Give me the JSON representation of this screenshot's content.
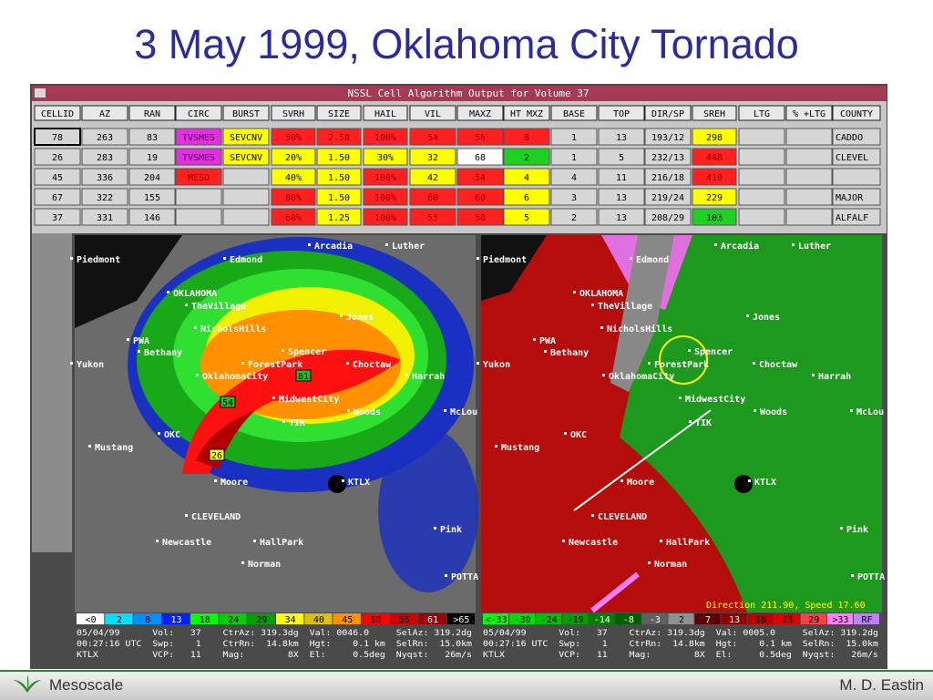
{
  "slide": {
    "title": "3 May 1999, Oklahoma City Tornado",
    "footer_left": "Mesoscale",
    "footer_right": "M. D. Eastin"
  },
  "window": {
    "title": "NSSL Cell Algorithm Output for Volume 37"
  },
  "table": {
    "columns": [
      "CELLID",
      "AZ",
      "RAN",
      "CIRC",
      "BURST",
      "SVRH",
      "SIZE",
      "HAIL",
      "VIL",
      "MAXZ",
      "HT MXZ",
      "BASE",
      "TOP",
      "DIR/SP",
      "SREH",
      "LTG",
      "% +LTG",
      "COUNTY"
    ],
    "rows": [
      [
        "78",
        "263",
        "83",
        "TVSMES",
        "SEVCNV",
        "50%",
        "2.50",
        "100%",
        "54",
        "56",
        "8",
        "1",
        "13",
        "193/12",
        "298",
        null,
        null,
        "CADDO"
      ],
      [
        "26",
        "283",
        "19",
        "TVSMES",
        "SEVCNV",
        "20%",
        "1.50",
        "30%",
        "32",
        "68",
        "2",
        "1",
        "5",
        "232/13",
        "448",
        null,
        null,
        "CLEVEL"
      ],
      [
        "45",
        "336",
        "204",
        "MESO",
        null,
        "40%",
        "1.50",
        "100%",
        "42",
        "54",
        "4",
        "4",
        "11",
        "216/18",
        "410",
        null,
        null,
        null
      ],
      [
        "67",
        "322",
        "155",
        null,
        null,
        "80%",
        "1.50",
        "100%",
        "60",
        "60",
        "6",
        "3",
        "13",
        "219/24",
        "229",
        null,
        null,
        "MAJOR"
      ],
      [
        "37",
        "331",
        "146",
        null,
        null,
        "60%",
        "1.25",
        "100%",
        "55",
        "58",
        "5",
        "2",
        "13",
        "208/29",
        "103",
        null,
        null,
        "ALFALF"
      ]
    ]
  },
  "radar": {
    "places": [
      "Arcadia",
      "Luther",
      "Piedmont",
      "Edmond",
      "OKLAHOMA",
      "TheVillage",
      "NicholsHills",
      "Jones",
      "PWA",
      "Bethany",
      "Spencer",
      "Yukon",
      "ForestPark",
      "Choctaw",
      "OklahomaCity",
      "Harrah",
      "MidwestCity",
      "Woods",
      "McLou",
      "TIK",
      "OKC",
      "Mustang",
      "Moore",
      "KTLX",
      "CLEVELAND",
      "Pink",
      "Newcastle",
      "HallPark",
      "Norman",
      "POTTA"
    ],
    "left_cells": [
      "81",
      "54",
      "26"
    ],
    "left_scale": [
      "<0",
      "2",
      "8",
      "13",
      "18",
      "24",
      "29",
      "34",
      "40",
      "45",
      "50",
      "55",
      "61",
      ">65"
    ],
    "right_scale": [
      "<-33",
      "-30",
      "-24",
      "-19",
      "-14",
      "-8",
      "-3",
      "2",
      "7",
      "13",
      "18",
      "23",
      "29",
      ">33",
      "RF"
    ],
    "right_note": "Direction 211.90, Speed 17.60",
    "left_info": [
      "05/04/99      Vol:   37    CtrAz: 319.3dg  Val: 0046.0     SelAz: 319.2dg",
      "00:27:16 UTC  Swp:    1    CtrRn:  14.8km  Hgt:    0.1 km  SelRn:  15.0km",
      "KTLX          VCP:   11    Mag:        8X  El:     0.5deg  Nyqst:   26m/s"
    ],
    "right_info": [
      "05/04/99      Vol:   37    CtrAz: 319.3dg  Val: 0005.0     SelAz: 319.2dg",
      "00:27:16 UTC  Swp:    1    CtrRn:  14.8km  Hgt:    0.1 km  SelRn:  15.0km",
      "KTLX          VCP:   11    Mag:        8X  El:     0.5deg  Nyqst:   26m/s"
    ]
  }
}
